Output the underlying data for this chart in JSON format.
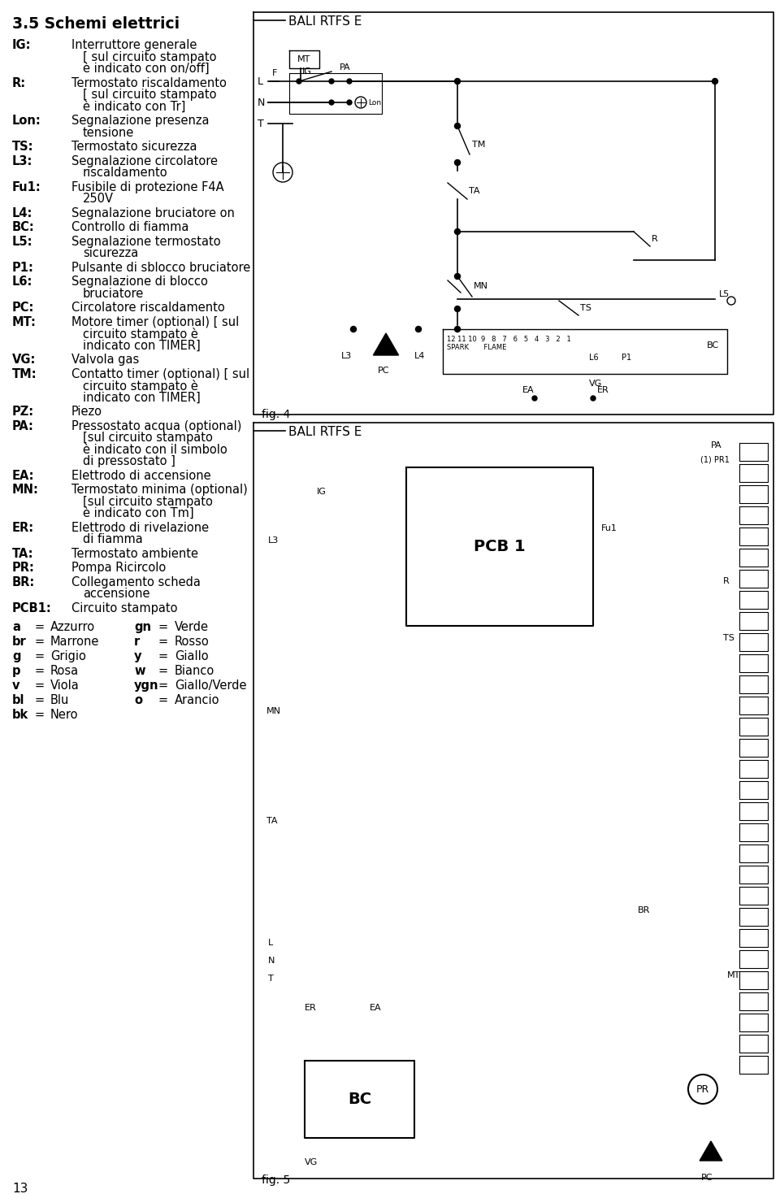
{
  "title": "3.5 Schemi elettrici",
  "bg_color": "#ffffff",
  "text_color": "#000000",
  "left_entries": [
    {
      "key": "IG",
      "sep": ":",
      "text": "Interruttore generale\n[ sul circuito stampato\nè indicato con on/off]"
    },
    {
      "key": "R",
      "sep": ":",
      "text": "Termostato riscaldamento\n[ sul circuito stampato\nè indicato con Tr]"
    },
    {
      "key": "Lon",
      "sep": ":",
      "text": "Segnalazione presenza\ntensione"
    },
    {
      "key": "TS",
      "sep": ":",
      "text": "Termostato sicurezza"
    },
    {
      "key": "L3",
      "sep": ":",
      "text": "Segnalazione circolatore\nriscaldamento"
    },
    {
      "key": "Fu1",
      "sep": ":",
      "text": "Fusibile di protezione F4A\n250V"
    },
    {
      "key": "L4",
      "sep": ":",
      "text": "Segnalazione bruciatore on"
    },
    {
      "key": "BC",
      "sep": ":",
      "text": "Controllo di fiamma"
    },
    {
      "key": "L5",
      "sep": ":",
      "text": "Segnalazione termostato\nsicurezza"
    },
    {
      "key": "P1",
      "sep": ":",
      "text": "Pulsante di sblocco bruciatore"
    },
    {
      "key": "L6",
      "sep": ":",
      "text": "Segnalazione di blocco\nbruciatore"
    },
    {
      "key": "PC",
      "sep": ":",
      "text": "Circolatore riscaldamento"
    },
    {
      "key": "MT",
      "sep": ":",
      "text": "Motore timer (optional) [ sul\ncircuito stampato è\nindicato con TIMER]"
    },
    {
      "key": "VG",
      "sep": ":",
      "text": "Valvola gas"
    },
    {
      "key": "TM",
      "sep": ":",
      "text": "Contatto timer (optional) [ sul\ncircuito stampato è\nindicato con TIMER]"
    },
    {
      "key": "PZ",
      "sep": ":",
      "text": "Piezo"
    },
    {
      "key": "PA",
      "sep": ":",
      "text": "Pressostato acqua (optional)\n[sul circuito stampato\nè indicato con il simbolo\ndi pressostato ]"
    },
    {
      "key": "EA",
      "sep": ":",
      "text": "Elettrodo di accensione"
    },
    {
      "key": "MN",
      "sep": ":",
      "text": "Termostato minima (optional)\n[sul circuito stampato\nè indicato con Tm]"
    },
    {
      "key": "ER",
      "sep": ":",
      "text": "Elettrodo di rivelazione\ndi fiamma"
    },
    {
      "key": "TA",
      "sep": ":",
      "text": "Termostato ambiente"
    },
    {
      "key": "PR",
      "sep": ":",
      "text": "Pompa Ricircolo"
    },
    {
      "key": "BR",
      "sep": ":",
      "text": "Collegamento scheda\naccensione"
    },
    {
      "key": "PCB1",
      "sep": ":",
      "text": "Circuito stampato"
    }
  ],
  "color_entries_col1": [
    {
      "key": "a",
      "text": "Azzurro"
    },
    {
      "key": "br",
      "text": "Marrone"
    },
    {
      "key": "g",
      "text": "Grigio"
    },
    {
      "key": "p",
      "text": "Rosa"
    },
    {
      "key": "v",
      "text": "Viola"
    },
    {
      "key": "bl",
      "text": "Blu"
    },
    {
      "key": "bk",
      "text": "Nero"
    }
  ],
  "color_entries_col2": [
    {
      "key": "gn",
      "text": "Verde"
    },
    {
      "key": "r",
      "text": "Rosso"
    },
    {
      "key": "y",
      "text": "Giallo"
    },
    {
      "key": "w",
      "text": "Bianco"
    },
    {
      "key": "ygn",
      "text": "Giallo/Verde"
    },
    {
      "key": "o",
      "text": "Arancio"
    }
  ],
  "page_number": "13",
  "fig4_label": "fig. 4",
  "fig5_label": "fig. 5",
  "diagram1_title": "BALI RTFS E",
  "diagram2_title": "BALI RTFS E"
}
